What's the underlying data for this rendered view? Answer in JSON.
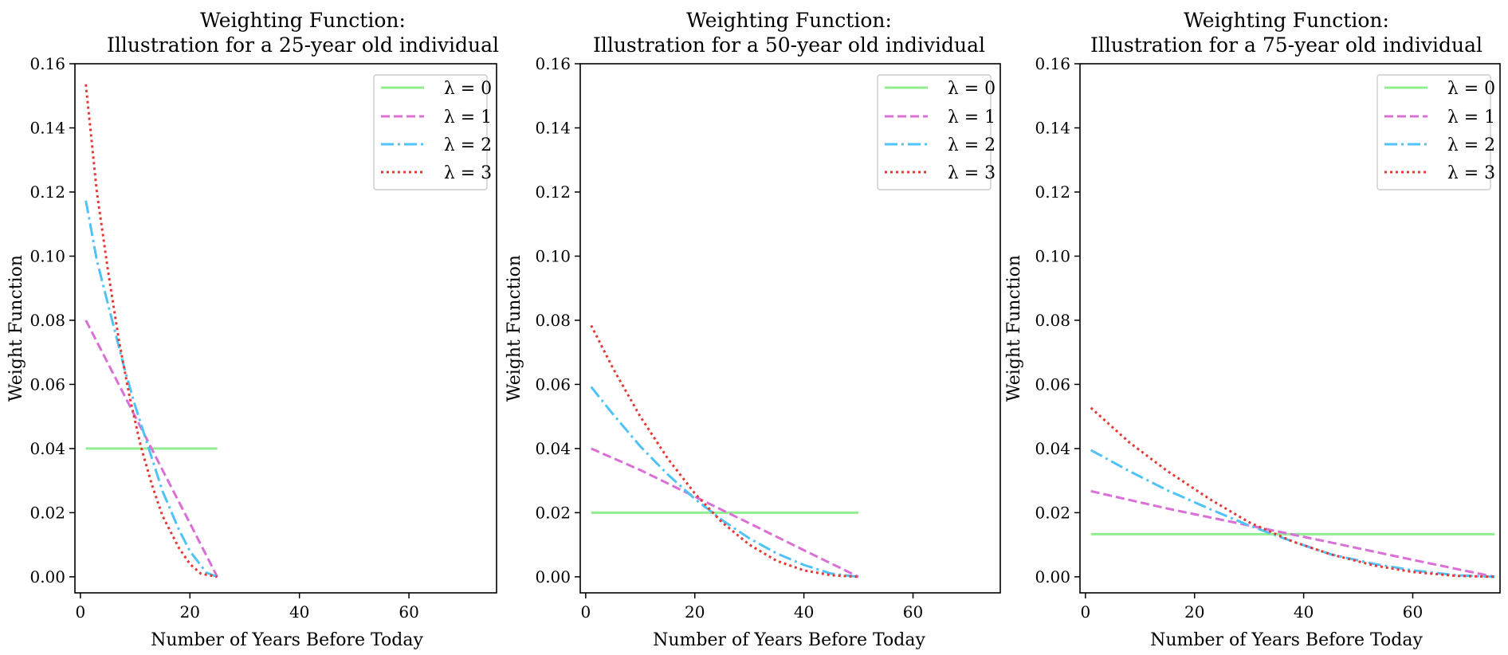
{
  "figure": {
    "panels": [
      {
        "title_line1": "Weighting Function:",
        "title_line2": "Illustration for a 25-year old individual",
        "xlabel": "Number of Years Before Today",
        "ylabel": "Weight Function"
      },
      {
        "title_line1": "Weighting Function:",
        "title_line2": "Illustration for a 50-year old individual",
        "xlabel": "Number of Years Before Today",
        "ylabel": "Weight Function"
      },
      {
        "title_line1": "Weighting Function:",
        "title_line2": "Illustration for a 75-year old individual",
        "xlabel": "Number of Years Before Today",
        "ylabel": "Weight Function"
      }
    ],
    "legend_labels": [
      "λ = 0",
      "λ = 1",
      "λ = 2",
      "λ = 3"
    ],
    "colors": {
      "lambda0": "#90ee90",
      "lambda1": "#da70d6",
      "lambda2": "#4fc3f7",
      "lambda3": "#e53935"
    }
  },
  "chart_data": [
    {
      "type": "line",
      "title": "Weighting Function:\nIllustration for a 25-year old individual",
      "xlabel": "Number of Years Before Today",
      "ylabel": "Weight Function",
      "xlim": [
        -1,
        76
      ],
      "ylim": [
        -0.005,
        0.16
      ],
      "xticks": [
        0,
        20,
        40,
        60
      ],
      "yticks": [
        "0.00",
        "0.02",
        "0.04",
        "0.06",
        "0.08",
        "0.10",
        "0.12",
        "0.14",
        "0.16"
      ],
      "legend_position": "upper right",
      "grid": false,
      "age": 25,
      "series": [
        {
          "name": "λ = 0",
          "style": "solid",
          "x": [
            1,
            25
          ],
          "y": [
            0.04,
            0.04
          ]
        },
        {
          "name": "λ = 1",
          "style": "dashed",
          "x": [
            1,
            5,
            10,
            15,
            20,
            25
          ],
          "y": [
            0.08,
            0.0667,
            0.05,
            0.0333,
            0.0167,
            0.0
          ]
        },
        {
          "name": "λ = 2",
          "style": "dashdot",
          "x": [
            1,
            3,
            5,
            8,
            10,
            13,
            15,
            18,
            20,
            23,
            25
          ],
          "y": [
            0.1173,
            0.0987,
            0.0853,
            0.0653,
            0.0533,
            0.0373,
            0.0267,
            0.0147,
            0.008,
            0.0013,
            0.0
          ]
        },
        {
          "name": "λ = 3",
          "style": "dotted",
          "x": [
            1,
            3,
            5,
            7,
            9,
            11,
            13,
            15,
            18,
            20,
            22,
            25
          ],
          "y": [
            0.1536,
            0.12,
            0.096,
            0.074,
            0.056,
            0.041,
            0.029,
            0.019,
            0.009,
            0.004,
            0.001,
            0.0
          ]
        }
      ]
    },
    {
      "type": "line",
      "title": "Weighting Function:\nIllustration for a 50-year old individual",
      "xlabel": "Number of Years Before Today",
      "ylabel": "Weight Function",
      "xlim": [
        -1,
        76
      ],
      "ylim": [
        -0.005,
        0.16
      ],
      "xticks": [
        0,
        20,
        40,
        60
      ],
      "yticks": [
        "0.00",
        "0.02",
        "0.04",
        "0.06",
        "0.08",
        "0.10",
        "0.12",
        "0.14",
        "0.16"
      ],
      "legend_position": "upper right",
      "grid": false,
      "age": 50,
      "series": [
        {
          "name": "λ = 0",
          "style": "solid",
          "x": [
            1,
            50
          ],
          "y": [
            0.02,
            0.02
          ]
        },
        {
          "name": "λ = 1",
          "style": "dashed",
          "x": [
            1,
            10,
            20,
            30,
            40,
            50
          ],
          "y": [
            0.04,
            0.0333,
            0.025,
            0.0167,
            0.0083,
            0.0
          ]
        },
        {
          "name": "λ = 2",
          "style": "dashdot",
          "x": [
            1,
            5,
            10,
            15,
            20,
            25,
            30,
            35,
            40,
            45,
            50
          ],
          "y": [
            0.0592,
            0.0507,
            0.0407,
            0.032,
            0.0243,
            0.0177,
            0.012,
            0.0073,
            0.0037,
            0.001,
            0.0
          ]
        },
        {
          "name": "λ = 3",
          "style": "dotted",
          "x": [
            1,
            5,
            10,
            15,
            20,
            25,
            30,
            35,
            40,
            45,
            50
          ],
          "y": [
            0.0784,
            0.065,
            0.05,
            0.037,
            0.026,
            0.017,
            0.01,
            0.005,
            0.002,
            0.0005,
            0.0
          ]
        }
      ]
    },
    {
      "type": "line",
      "title": "Weighting Function:\nIllustration for a 75-year old individual",
      "xlabel": "Number of Years Before Today",
      "ylabel": "Weight Function",
      "xlim": [
        -1,
        76
      ],
      "ylim": [
        -0.005,
        0.16
      ],
      "xticks": [
        0,
        20,
        40,
        60
      ],
      "yticks": [
        "0.00",
        "0.02",
        "0.04",
        "0.06",
        "0.08",
        "0.10",
        "0.12",
        "0.14",
        "0.16"
      ],
      "legend_position": "upper right",
      "grid": false,
      "age": 75,
      "series": [
        {
          "name": "λ = 0",
          "style": "solid",
          "x": [
            1,
            75
          ],
          "y": [
            0.0133,
            0.0133
          ]
        },
        {
          "name": "λ = 1",
          "style": "dashed",
          "x": [
            1,
            15,
            30,
            45,
            60,
            75
          ],
          "y": [
            0.0267,
            0.0213,
            0.016,
            0.0107,
            0.0053,
            0.0
          ]
        },
        {
          "name": "λ = 2",
          "style": "dashdot",
          "x": [
            1,
            8,
            15,
            23,
            30,
            38,
            45,
            53,
            60,
            68,
            75
          ],
          "y": [
            0.0395,
            0.033,
            0.027,
            0.021,
            0.016,
            0.011,
            0.007,
            0.004,
            0.002,
            0.0005,
            0.0
          ]
        },
        {
          "name": "λ = 3",
          "style": "dotted",
          "x": [
            1,
            8,
            15,
            23,
            30,
            38,
            45,
            53,
            60,
            68,
            75
          ],
          "y": [
            0.0527,
            0.042,
            0.033,
            0.024,
            0.017,
            0.011,
            0.007,
            0.0035,
            0.0015,
            0.0003,
            0.0
          ]
        }
      ]
    }
  ]
}
